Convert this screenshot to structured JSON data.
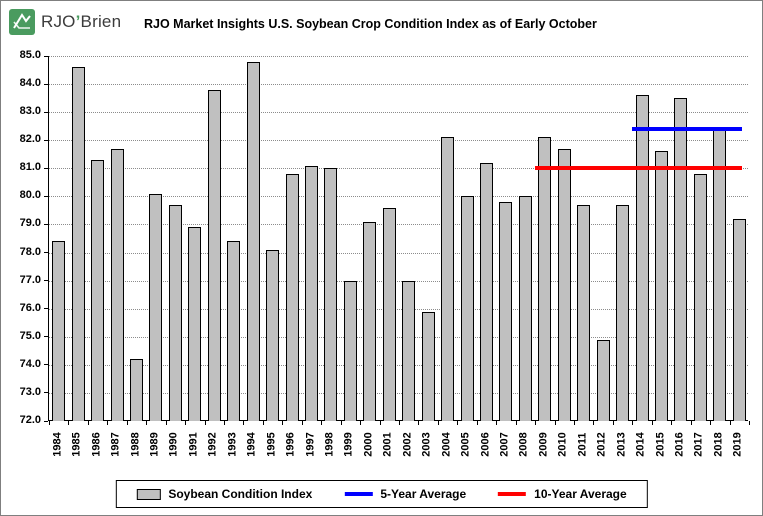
{
  "logo": {
    "primary": "RJO",
    "apostrophe": "’",
    "secondary": "Brien"
  },
  "header": {
    "title": "RJO Market Insights U.S. Soybean Crop Condition Index as of Early October"
  },
  "chart_data": {
    "type": "bar",
    "title": "RJO Market Insights U.S. Soybean Crop Condition Index as of Early October",
    "series_name": "Soybean Condition Index",
    "categories": [
      "1984",
      "1985",
      "1986",
      "1987",
      "1988",
      "1989",
      "1990",
      "1991",
      "1992",
      "1993",
      "1994",
      "1995",
      "1996",
      "1997",
      "1998",
      "1999",
      "2000",
      "2001",
      "2002",
      "2003",
      "2004",
      "2005",
      "2006",
      "2007",
      "2008",
      "2009",
      "2010",
      "2011",
      "2012",
      "2013",
      "2014",
      "2015",
      "2016",
      "2017",
      "2018",
      "2019"
    ],
    "values": [
      78.4,
      84.6,
      81.3,
      81.7,
      74.2,
      80.1,
      79.7,
      78.9,
      83.8,
      78.4,
      84.8,
      78.1,
      80.8,
      81.1,
      81.0,
      77.0,
      79.1,
      79.6,
      77.0,
      75.9,
      82.1,
      80.0,
      81.2,
      79.8,
      80.0,
      82.1,
      81.7,
      79.7,
      74.9,
      79.7,
      83.6,
      81.6,
      83.5,
      80.8,
      82.4,
      79.2
    ],
    "ylim": [
      72.0,
      85.0
    ],
    "ytick_step": 1.0,
    "grid": "horizontal-dotted",
    "legend_position": "bottom",
    "bar_color": "#c0c0c0",
    "bar_border_color": "#000000",
    "avg_lines": [
      {
        "label": "5-Year Average",
        "value": 82.4,
        "color": "#0000ff",
        "start_category": "2014",
        "end_category": "2018"
      },
      {
        "label": "10-Year Average",
        "value": 81.0,
        "color": "#ff0000",
        "start_category": "2009",
        "end_category": "2018"
      }
    ],
    "legend": [
      {
        "label": "Soybean Condition Index",
        "swatch": "bar",
        "color": "#c0c0c0"
      },
      {
        "label": "5-Year Average",
        "swatch": "line",
        "color": "#0000ff"
      },
      {
        "label": "10-Year Average",
        "swatch": "line",
        "color": "#ff0000"
      }
    ]
  },
  "logo_brand_color": "#4a9b5f"
}
